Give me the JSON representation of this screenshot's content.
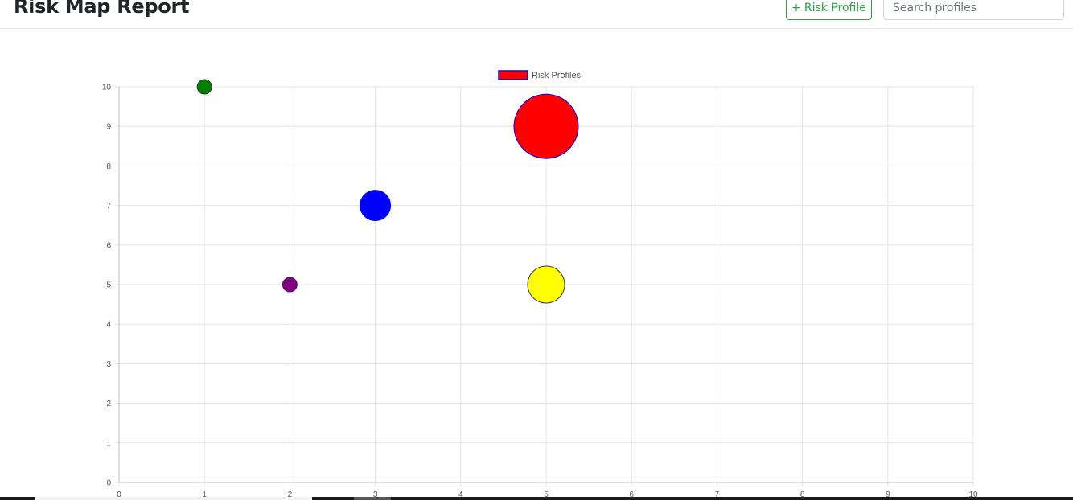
{
  "header": {
    "title": "Risk Map Report",
    "add_button_icon": "+",
    "add_button_label": "Risk Profile",
    "search_placeholder": "Search profiles"
  },
  "chart_data": {
    "type": "bubble",
    "title": "",
    "xlabel": "",
    "ylabel": "",
    "xlim": [
      0,
      10
    ],
    "ylim": [
      0,
      10
    ],
    "x_ticks": [
      "0",
      "1",
      "2",
      "3",
      "4",
      "5",
      "6",
      "7",
      "8",
      "9",
      "10"
    ],
    "y_ticks": [
      "0",
      "1",
      "2",
      "3",
      "4",
      "5",
      "6",
      "7",
      "8",
      "9",
      "10"
    ],
    "grid": true,
    "legend": {
      "placement": "top-center",
      "label": "Risk Profiles",
      "color": "#ff0000",
      "border": "#0000ff"
    },
    "series": [
      {
        "name": "Risk Profiles",
        "points": [
          {
            "x": 1,
            "y": 10,
            "r": 9,
            "color": "#008000",
            "border": "#1f3a1f"
          },
          {
            "x": 2,
            "y": 5,
            "r": 9,
            "color": "#800080",
            "border": "#4b1a6b"
          },
          {
            "x": 3,
            "y": 7,
            "r": 19,
            "color": "#0000ff",
            "border": "#0000ff"
          },
          {
            "x": 5,
            "y": 9,
            "r": 40,
            "color": "#ff0000",
            "border": "#0000ff"
          },
          {
            "x": 5,
            "y": 5,
            "r": 23,
            "color": "#ffff00",
            "border": "#333366"
          }
        ]
      }
    ]
  }
}
